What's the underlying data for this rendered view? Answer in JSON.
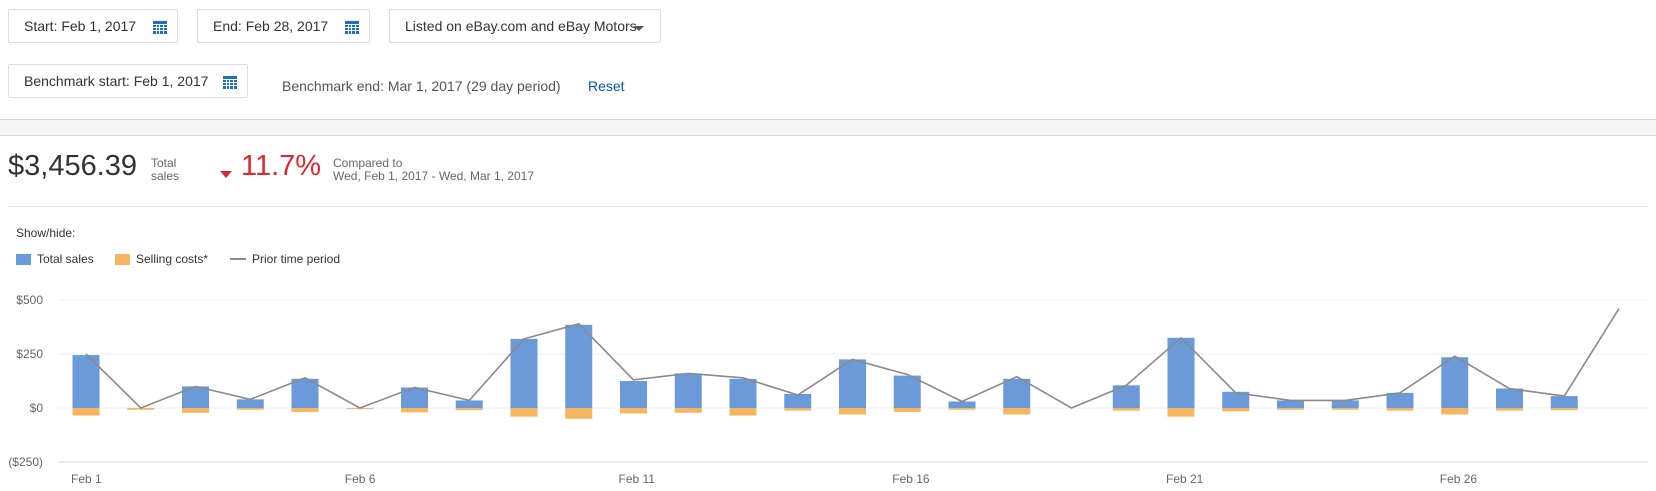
{
  "filters": {
    "start": "Start: Feb 1, 2017",
    "end": "End: Feb 28, 2017",
    "listing": "Listed on eBay.com and eBay Motors",
    "benchmark_start": "Benchmark start: Feb 1, 2017",
    "benchmark_end": "Benchmark end: Mar 1, 2017 (29 day period)",
    "reset": "Reset"
  },
  "summary": {
    "total": "$3,456.39",
    "total_label_1": "Total",
    "total_label_2": "sales",
    "change": "11.7%",
    "compared_1": "Compared to",
    "compared_2": "Wed, Feb 1, 2017 - Wed, Mar 1, 2017"
  },
  "legend": {
    "show_hide": "Show/hide:",
    "total_sales": "Total sales",
    "selling_costs": "Selling costs*",
    "prior": "Prior time period"
  },
  "colors": {
    "total_sales": "#6a9ad9",
    "selling_costs": "#f6b55f",
    "prior": "#8a8a8a",
    "down": "#e0262e",
    "link": "#0654ba"
  },
  "chart_data": {
    "type": "bar",
    "x": [
      "Feb 1",
      "Feb 2",
      "Feb 3",
      "Feb 4",
      "Feb 5",
      "Feb 6",
      "Feb 7",
      "Feb 8",
      "Feb 9",
      "Feb 10",
      "Feb 11",
      "Feb 12",
      "Feb 13",
      "Feb 14",
      "Feb 15",
      "Feb 16",
      "Feb 17",
      "Feb 18",
      "Feb 19",
      "Feb 20",
      "Feb 21",
      "Feb 22",
      "Feb 23",
      "Feb 24",
      "Feb 25",
      "Feb 26",
      "Feb 27",
      "Feb 28",
      "Mar 1"
    ],
    "xticks": [
      "Feb 1",
      "Feb 6",
      "Feb 11",
      "Feb 16",
      "Feb 21",
      "Feb 26"
    ],
    "yticks": [
      "$500",
      "$250",
      "$0",
      "($250)"
    ],
    "ylim": [
      -250,
      500
    ],
    "series": [
      {
        "name": "Total sales",
        "type": "bar",
        "values": [
          245,
          0,
          100,
          40,
          135,
          0,
          95,
          35,
          320,
          385,
          125,
          160,
          135,
          65,
          225,
          150,
          30,
          135,
          0,
          105,
          325,
          75,
          35,
          35,
          70,
          235,
          90,
          55,
          null
        ]
      },
      {
        "name": "Selling costs*",
        "type": "bar",
        "values": [
          -35,
          -8,
          -22,
          -8,
          -18,
          -5,
          -20,
          -10,
          -40,
          -50,
          -25,
          -22,
          -35,
          -12,
          -30,
          -18,
          -8,
          -30,
          0,
          -12,
          -40,
          -15,
          -8,
          -8,
          -12,
          -30,
          -12,
          -10,
          null
        ]
      },
      {
        "name": "Prior time period",
        "type": "line",
        "values": [
          250,
          0,
          100,
          40,
          140,
          0,
          95,
          35,
          320,
          390,
          130,
          160,
          140,
          60,
          225,
          155,
          30,
          145,
          0,
          105,
          325,
          70,
          35,
          35,
          70,
          240,
          90,
          55,
          460
        ]
      }
    ]
  }
}
